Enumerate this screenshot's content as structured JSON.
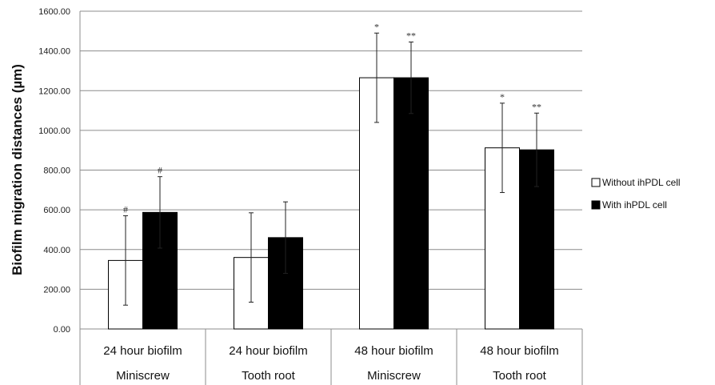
{
  "chart_data": {
    "type": "bar",
    "ylabel": "Biofilm migration distances (µm)",
    "ylim": [
      0,
      1600
    ],
    "y_ticks": [
      "0.00",
      "200.00",
      "400.00",
      "600.00",
      "800.00",
      "1000.00",
      "1200.00",
      "1400.00",
      "1600.00"
    ],
    "grid": true,
    "legend_position": "right",
    "categories": [
      {
        "line1": "24 hour biofilm",
        "line2": "Miniscrew"
      },
      {
        "line1": "24 hour biofilm",
        "line2": "Tooth root"
      },
      {
        "line1": "48 hour biofilm",
        "line2": "Miniscrew"
      },
      {
        "line1": "48 hour biofilm",
        "line2": "Tooth root"
      }
    ],
    "series": [
      {
        "name": "Without ihPDL cell",
        "color": "#ffffff",
        "values": [
          345,
          360,
          1265,
          912
        ],
        "error": [
          225,
          225,
          225,
          225
        ],
        "annotations": [
          "#",
          "",
          "*",
          "*"
        ]
      },
      {
        "name": "With ihPDL cell",
        "color": "#000000",
        "values": [
          587,
          460,
          1265,
          902
        ],
        "error": [
          180,
          180,
          180,
          185
        ],
        "annotations": [
          "#",
          "",
          "**",
          "**"
        ]
      }
    ]
  }
}
